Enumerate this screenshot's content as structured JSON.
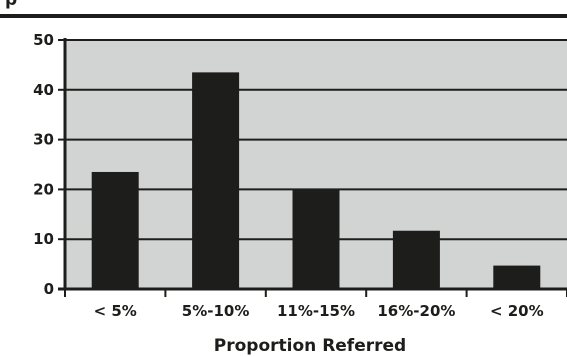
{
  "colors": {
    "plot_background": "#d2d3d3",
    "bar": "#1d1d1b",
    "gridline": "#1d1d1b",
    "text": "#1d1d1b"
  },
  "chart_data": {
    "type": "bar",
    "title": "p",
    "categories": [
      "< 5%",
      "5%-10%",
      "11%-15%",
      "16%-20%",
      "< 20%"
    ],
    "values": [
      23.5,
      43.5,
      20,
      11.7,
      4.7
    ],
    "xlabel": "Proportion Referred",
    "ylabel": "",
    "ylim": [
      0,
      50
    ],
    "yticks": [
      0,
      10,
      20,
      30,
      40,
      50
    ],
    "grid": true
  }
}
